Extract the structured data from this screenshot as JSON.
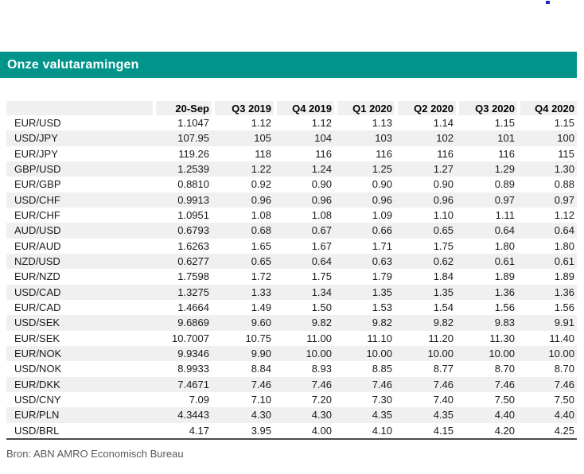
{
  "header": {
    "title": "Onze valutaramingen"
  },
  "colors": {
    "accent_teal": "#00948b",
    "stripe_gray": "#f0f0f0",
    "bottom_border": "#4a4a4a",
    "footer_text": "#595959",
    "artifact_blue": "#2323cc"
  },
  "table": {
    "columns": [
      "20-Sep",
      "Q3 2019",
      "Q4 2019",
      "Q1 2020",
      "Q2 2020",
      "Q3 2020",
      "Q4 2020"
    ],
    "rows": [
      {
        "pair": "EUR/USD",
        "values": [
          "1.1047",
          "1.12",
          "1.12",
          "1.13",
          "1.14",
          "1.15",
          "1.15"
        ]
      },
      {
        "pair": "USD/JPY",
        "values": [
          "107.95",
          "105",
          "104",
          "103",
          "102",
          "101",
          "100"
        ]
      },
      {
        "pair": "EUR/JPY",
        "values": [
          "119.26",
          "118",
          "116",
          "116",
          "116",
          "116",
          "115"
        ]
      },
      {
        "pair": "GBP/USD",
        "values": [
          "1.2539",
          "1.22",
          "1.24",
          "1.25",
          "1.27",
          "1.29",
          "1.30"
        ]
      },
      {
        "pair": "EUR/GBP",
        "values": [
          "0.8810",
          "0.92",
          "0.90",
          "0.90",
          "0.90",
          "0.89",
          "0.88"
        ]
      },
      {
        "pair": "USD/CHF",
        "values": [
          "0.9913",
          "0.96",
          "0.96",
          "0.96",
          "0.96",
          "0.97",
          "0.97"
        ]
      },
      {
        "pair": "EUR/CHF",
        "values": [
          "1.0951",
          "1.08",
          "1.08",
          "1.09",
          "1.10",
          "1.11",
          "1.12"
        ]
      },
      {
        "pair": "AUD/USD",
        "values": [
          "0.6793",
          "0.68",
          "0.67",
          "0.66",
          "0.65",
          "0.64",
          "0.64"
        ]
      },
      {
        "pair": "EUR/AUD",
        "values": [
          "1.6263",
          "1.65",
          "1.67",
          "1.71",
          "1.75",
          "1.80",
          "1.80"
        ]
      },
      {
        "pair": "NZD/USD",
        "values": [
          "0.6277",
          "0.65",
          "0.64",
          "0.63",
          "0.62",
          "0.61",
          "0.61"
        ]
      },
      {
        "pair": "EUR/NZD",
        "values": [
          "1.7598",
          "1.72",
          "1.75",
          "1.79",
          "1.84",
          "1.89",
          "1.89"
        ]
      },
      {
        "pair": "USD/CAD",
        "values": [
          "1.3275",
          "1.33",
          "1.34",
          "1.35",
          "1.35",
          "1.36",
          "1.36"
        ]
      },
      {
        "pair": "EUR/CAD",
        "values": [
          "1.4664",
          "1.49",
          "1.50",
          "1.53",
          "1.54",
          "1.56",
          "1.56"
        ]
      },
      {
        "pair": "USD/SEK",
        "values": [
          "9.6869",
          "9.60",
          "9.82",
          "9.82",
          "9.82",
          "9.83",
          "9.91"
        ]
      },
      {
        "pair": "EUR/SEK",
        "values": [
          "10.7007",
          "10.75",
          "11.00",
          "11.10",
          "11.20",
          "11.30",
          "11.40"
        ]
      },
      {
        "pair": "EUR/NOK",
        "values": [
          "9.9346",
          "9.90",
          "10.00",
          "10.00",
          "10.00",
          "10.00",
          "10.00"
        ]
      },
      {
        "pair": "USD/NOK",
        "values": [
          "8.9933",
          "8.84",
          "8.93",
          "8.85",
          "8.77",
          "8.70",
          "8.70"
        ]
      },
      {
        "pair": "EUR/DKK",
        "values": [
          "7.4671",
          "7.46",
          "7.46",
          "7.46",
          "7.46",
          "7.46",
          "7.46"
        ]
      },
      {
        "pair": "USD/CNY",
        "values": [
          "7.09",
          "7.10",
          "7.20",
          "7.30",
          "7.40",
          "7.50",
          "7.50"
        ]
      },
      {
        "pair": "EUR/PLN",
        "values": [
          "4.3443",
          "4.30",
          "4.30",
          "4.35",
          "4.35",
          "4.40",
          "4.40"
        ]
      },
      {
        "pair": "USD/BRL",
        "values": [
          "4.17",
          "3.95",
          "4.00",
          "4.10",
          "4.15",
          "4.20",
          "4.25"
        ]
      }
    ]
  },
  "footer": {
    "source": "Bron: ABN AMRO Economisch Bureau"
  }
}
